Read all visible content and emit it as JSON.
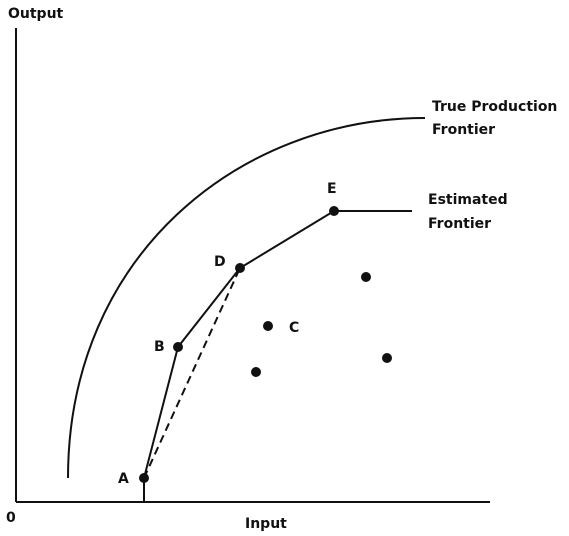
{
  "axes": {
    "y_label": "Output",
    "x_label": "Input",
    "origin": "0"
  },
  "points": [
    {
      "label": "A"
    },
    {
      "label": "B"
    },
    {
      "label": "C"
    },
    {
      "label": "D"
    },
    {
      "label": "E"
    }
  ],
  "curves": [
    {
      "label_lines": [
        "True Production",
        "Frontier"
      ]
    },
    {
      "label_lines": [
        "Estimated",
        "Frontier"
      ]
    }
  ]
}
